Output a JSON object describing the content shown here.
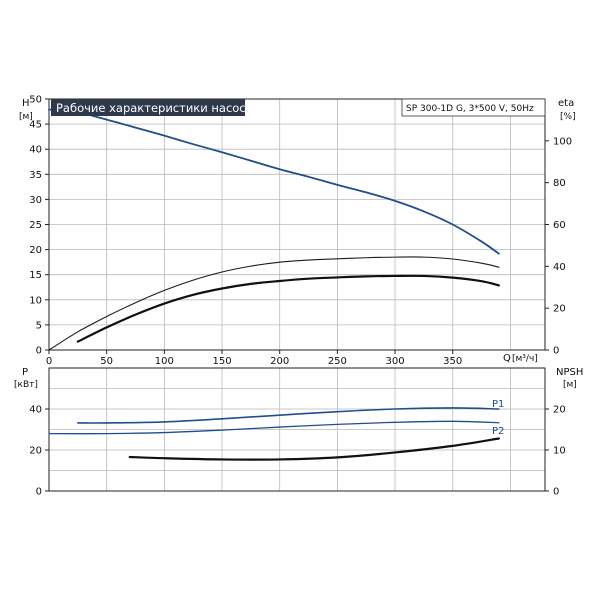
{
  "chart_data": [
    {
      "type": "line",
      "title": "Рабочие характеристики насоса",
      "subtitle": "SP 300-1D G, 3*500 V, 50Hz",
      "xlabel": "Q [м³/ч]",
      "xlabel_parts": {
        "name": "Q",
        "unit": "[м³/ч]"
      },
      "ylabel": "H [м]",
      "ylabel_parts": {
        "name": "H",
        "unit": "[м]"
      },
      "ylabel_right": "eta [%]",
      "ylabel_right_parts": {
        "name": "eta",
        "unit": "[%]"
      },
      "xlim": [
        0,
        430
      ],
      "ylim": [
        0,
        50
      ],
      "ylim_right": [
        0,
        120
      ],
      "x_ticks": [
        "0",
        "50",
        "100",
        "150",
        "200",
        "250",
        "300",
        "350"
      ],
      "y_ticks": [
        "0",
        "5",
        "10",
        "15",
        "20",
        "25",
        "30",
        "35",
        "40",
        "45",
        "50"
      ],
      "y_ticks_right": [
        "0",
        "20",
        "40",
        "60",
        "80",
        "100"
      ],
      "grid": true,
      "series": [
        {
          "axis": "left",
          "color": "#1f4e8c",
          "x": [
            0,
            25,
            50,
            75,
            100,
            125,
            150,
            175,
            200,
            225,
            250,
            275,
            300,
            325,
            350,
            375,
            390
          ],
          "y": [
            47.9,
            47.3,
            45.9,
            44.3,
            42.7,
            41.0,
            39.4,
            37.7,
            36.0,
            34.5,
            32.9,
            31.4,
            29.7,
            27.6,
            25.0,
            21.6,
            19.2
          ]
        },
        {
          "axis": "right",
          "color": "#1a1a1a",
          "x": [
            0,
            25,
            50,
            75,
            100,
            125,
            150,
            175,
            200,
            225,
            250,
            275,
            300,
            325,
            350,
            375,
            390
          ],
          "y": [
            0,
            8.7,
            16.0,
            22.6,
            28.5,
            33.4,
            37.3,
            40.1,
            42.0,
            43.0,
            43.6,
            44.1,
            44.4,
            44.4,
            43.5,
            41.5,
            39.6
          ]
        },
        {
          "axis": "right",
          "color": "#111111",
          "x": [
            25,
            50,
            75,
            100,
            125,
            150,
            175,
            200,
            225,
            250,
            275,
            300,
            325,
            350,
            375,
            390
          ],
          "y": [
            4.0,
            10.8,
            16.9,
            22.2,
            26.4,
            29.4,
            31.6,
            33.0,
            34.1,
            34.7,
            35.2,
            35.4,
            35.4,
            34.6,
            32.9,
            30.9
          ]
        }
      ]
    },
    {
      "type": "line",
      "xlim": [
        0,
        430
      ],
      "ylabel": "P [кВт]",
      "ylabel_parts": {
        "name": "P",
        "unit": "[кВт]"
      },
      "ylabel_right": "NPSH [м]",
      "ylabel_right_parts": {
        "name": "NPSH",
        "unit": "[м]"
      },
      "ylim": [
        0,
        60
      ],
      "ylim_right": [
        0,
        30
      ],
      "y_ticks": [
        "0",
        "20",
        "40"
      ],
      "y_ticks_right": [
        "0",
        "10",
        "20"
      ],
      "grid": true,
      "series": [
        {
          "name": "P1",
          "axis": "left",
          "color": "#1f4e8c",
          "x": [
            25,
            50,
            100,
            150,
            200,
            250,
            300,
            350,
            390
          ],
          "y": [
            33.2,
            33.2,
            33.7,
            35.2,
            37.0,
            38.7,
            40.0,
            40.5,
            40.0
          ]
        },
        {
          "name": "P2",
          "axis": "left",
          "color": "#1f4e8c",
          "x": [
            0,
            50,
            100,
            150,
            200,
            250,
            300,
            350,
            390
          ],
          "y": [
            28.0,
            28.0,
            28.5,
            29.7,
            31.2,
            32.5,
            33.5,
            34.0,
            33.3
          ]
        },
        {
          "axis": "right",
          "color": "#111111",
          "x": [
            70,
            100,
            150,
            200,
            250,
            300,
            350,
            390
          ],
          "y": [
            8.3,
            8.0,
            7.7,
            7.7,
            8.2,
            9.4,
            11.0,
            12.8
          ]
        }
      ]
    }
  ]
}
